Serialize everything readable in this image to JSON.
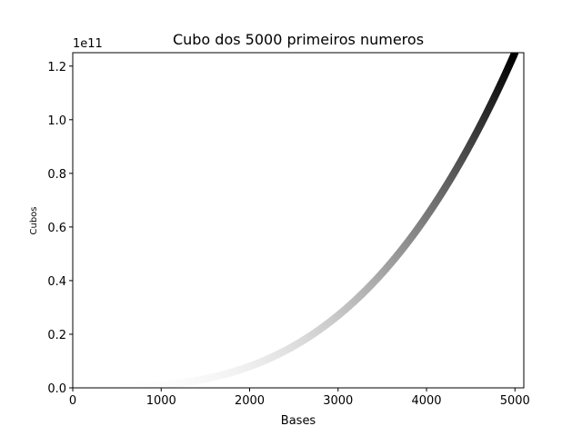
{
  "chart_data": {
    "type": "scatter",
    "title": "Cubo dos 5000 primeiros numeros",
    "xlabel": "Bases",
    "ylabel": "Cubos",
    "offset_text": "1e11",
    "xlim": [
      0,
      5100
    ],
    "ylim": [
      0,
      125000000000.0
    ],
    "x_ticks": [
      0,
      1000,
      2000,
      3000,
      4000,
      5000
    ],
    "x_tick_labels": [
      "0",
      "1000",
      "2000",
      "3000",
      "4000",
      "5000"
    ],
    "y_ticks": [
      0,
      20000000000.0,
      40000000000.0,
      60000000000.0,
      80000000000.0,
      100000000000.0,
      120000000000.0
    ],
    "y_tick_labels": [
      "0.0",
      "0.2",
      "0.4",
      "0.6",
      "0.8",
      "1.0",
      "1.2"
    ],
    "colormap": "Greys",
    "grid": false,
    "series": [
      {
        "formula": "y = x^3",
        "x_start": 1,
        "x_end": 5000,
        "count": 5000
      }
    ],
    "colors": {
      "low": "#ffffff",
      "high": "#000000"
    }
  }
}
